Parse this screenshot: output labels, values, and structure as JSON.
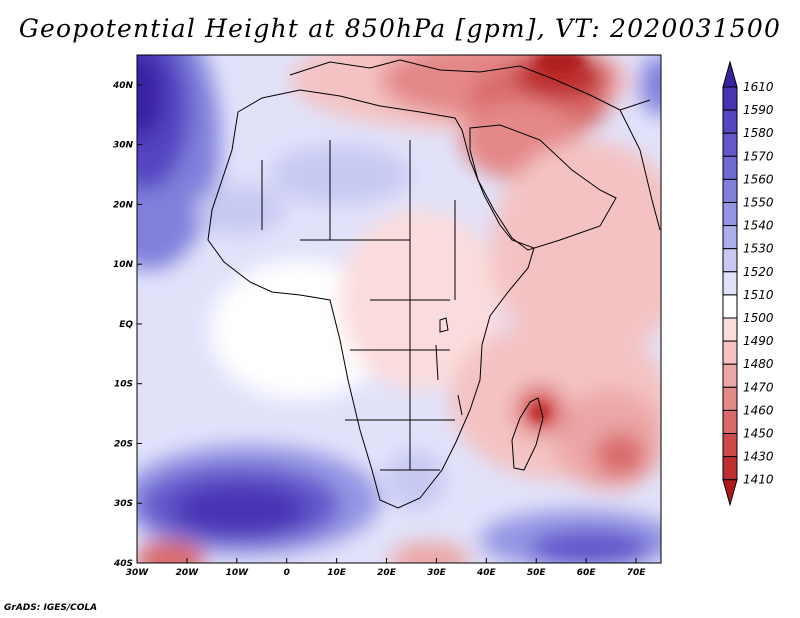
{
  "title": "Geopotential Height at 850hPa [gpm], VT: 2020031500",
  "footer": "GrADS: IGES/COLA",
  "map": {
    "lon_range": [
      -30,
      75
    ],
    "lat_range": [
      -40,
      45
    ],
    "lat_labels": [
      "40N",
      "30N",
      "20N",
      "10N",
      "EQ",
      "10S",
      "20S",
      "30S",
      "40S"
    ],
    "lon_labels": [
      "30W",
      "20W",
      "10W",
      "0",
      "10E",
      "20E",
      "30E",
      "40E",
      "50E",
      "60E",
      "70E"
    ]
  },
  "colorbar": {
    "levels": [
      "1610",
      "1590",
      "1580",
      "1570",
      "1560",
      "1550",
      "1540",
      "1530",
      "1520",
      "1510",
      "1500",
      "1490",
      "1480",
      "1470",
      "1460",
      "1450",
      "1430",
      "1410"
    ],
    "colors": [
      "#3a23a3",
      "#4833b3",
      "#5545c1",
      "#6257cb",
      "#7069d4",
      "#8080dc",
      "#9595e4",
      "#adaeec",
      "#c8c9f3",
      "#e1e2fa",
      "#ffffff",
      "#fbdcdc",
      "#f4c2c2",
      "#eca6a6",
      "#e48888",
      "#d96a6a",
      "#cc4a4a",
      "#be2e2e",
      "#ae1a1a"
    ]
  }
}
